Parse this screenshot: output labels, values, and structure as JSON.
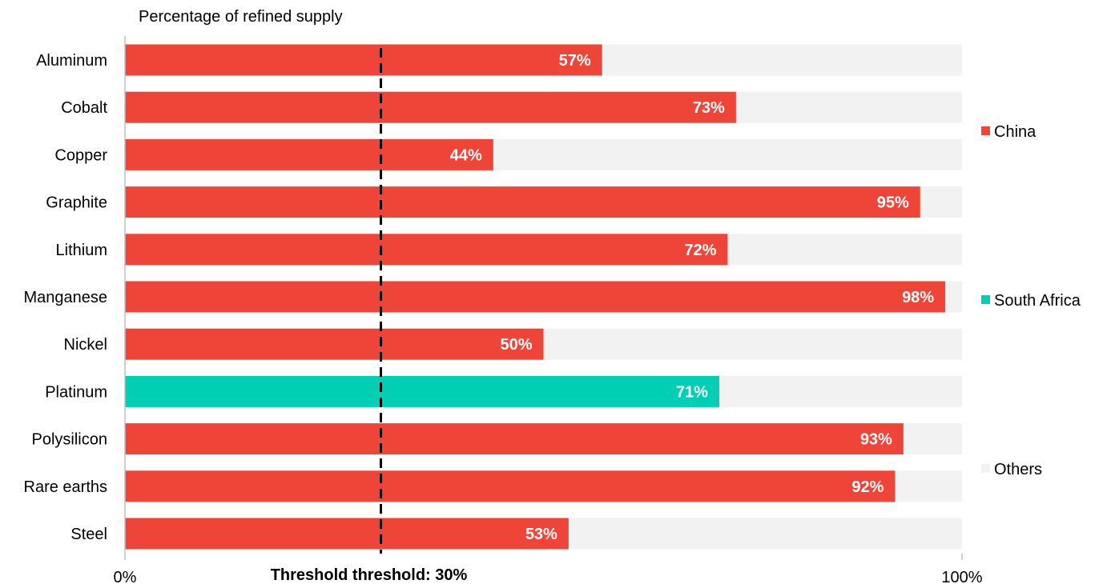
{
  "chart_data": {
    "type": "bar",
    "orientation": "horizontal",
    "stacked": true,
    "subtitle": "Percentage of refined supply",
    "categories": [
      "Aluminum",
      "Cobalt",
      "Copper",
      "Graphite",
      "Lithium",
      "Manganese",
      "Nickel",
      "Platinum",
      "Polysilicon",
      "Rare earths",
      "Steel"
    ],
    "values": [
      57,
      73,
      44,
      95,
      72,
      98,
      50,
      71,
      93,
      92,
      53
    ],
    "value_labels": [
      "57%",
      "73%",
      "44%",
      "95%",
      "72%",
      "98%",
      "50%",
      "71%",
      "93%",
      "92%",
      "53%"
    ],
    "bar_country": [
      "China",
      "China",
      "China",
      "China",
      "China",
      "China",
      "China",
      "South Africa",
      "China",
      "China",
      "China"
    ],
    "legend": [
      {
        "name": "China",
        "color": "#ee4538"
      },
      {
        "name": "South Africa",
        "color": "#00cfb4"
      },
      {
        "name": "Others",
        "color": "#f2f2f2"
      }
    ],
    "legend_position": "right",
    "xlim": [
      0,
      100
    ],
    "xtick_labels": [
      "0%",
      "100%"
    ],
    "threshold": {
      "value": 30,
      "label": "Threshold threshold: 30%"
    },
    "grid": false
  }
}
